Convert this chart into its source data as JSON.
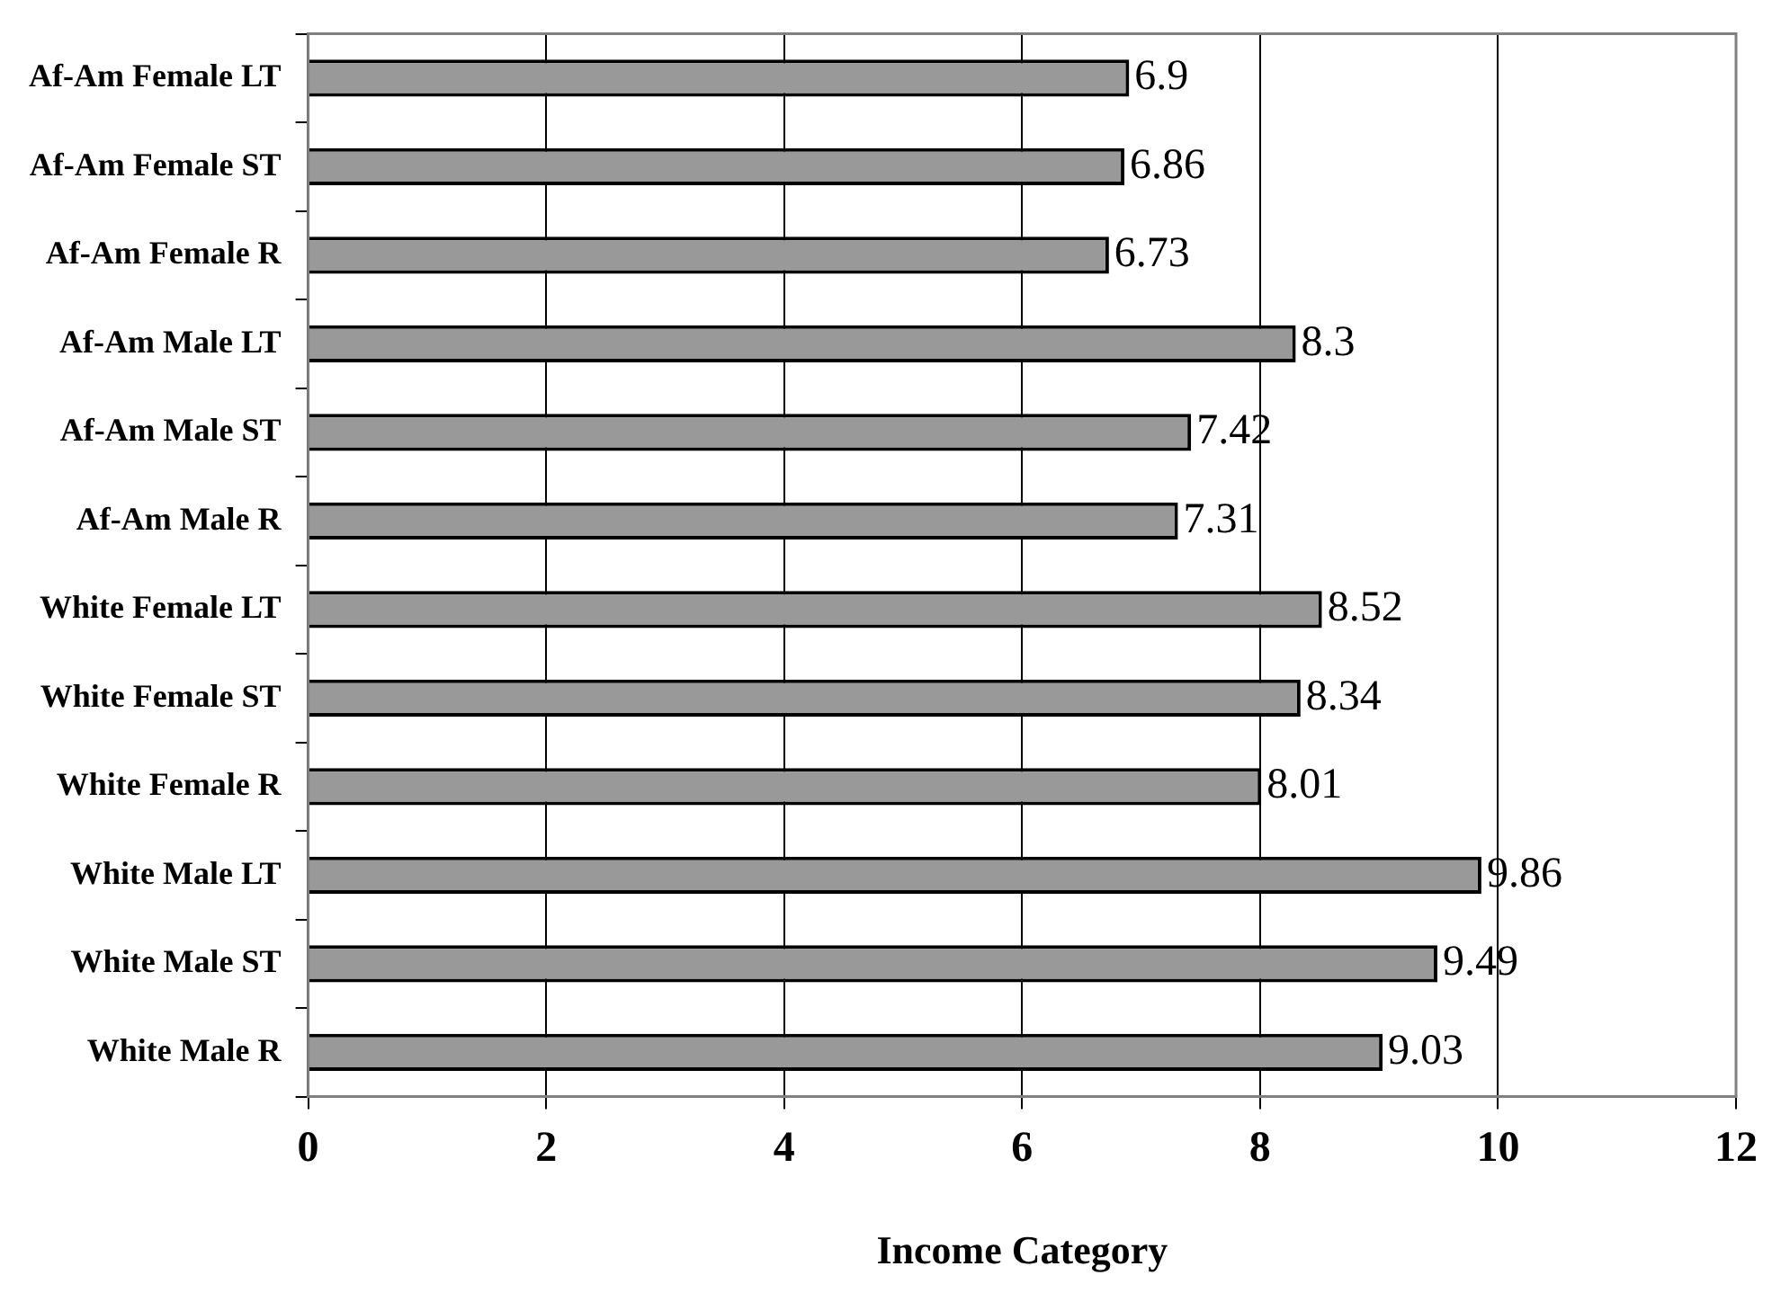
{
  "chart_data": {
    "type": "bar",
    "orientation": "horizontal",
    "xlabel": "Income Category",
    "categories": [
      "Af-Am Female LT",
      "Af-Am Female ST",
      "Af-Am Female R",
      "Af-Am Male LT",
      "Af-Am Male ST",
      "Af-Am Male R",
      "White Female LT",
      "White Female ST",
      "White Female R",
      "White Male LT",
      "White Male ST",
      "White Male R"
    ],
    "values": [
      6.9,
      6.86,
      6.73,
      8.3,
      7.42,
      7.31,
      8.52,
      8.34,
      8.01,
      9.86,
      9.49,
      9.03
    ],
    "color": "#999999",
    "xlim": [
      0,
      12
    ],
    "xticks": [
      0,
      2,
      4,
      6,
      8,
      10,
      12
    ],
    "grid": "x",
    "legend": false,
    "data_labels": true
  }
}
